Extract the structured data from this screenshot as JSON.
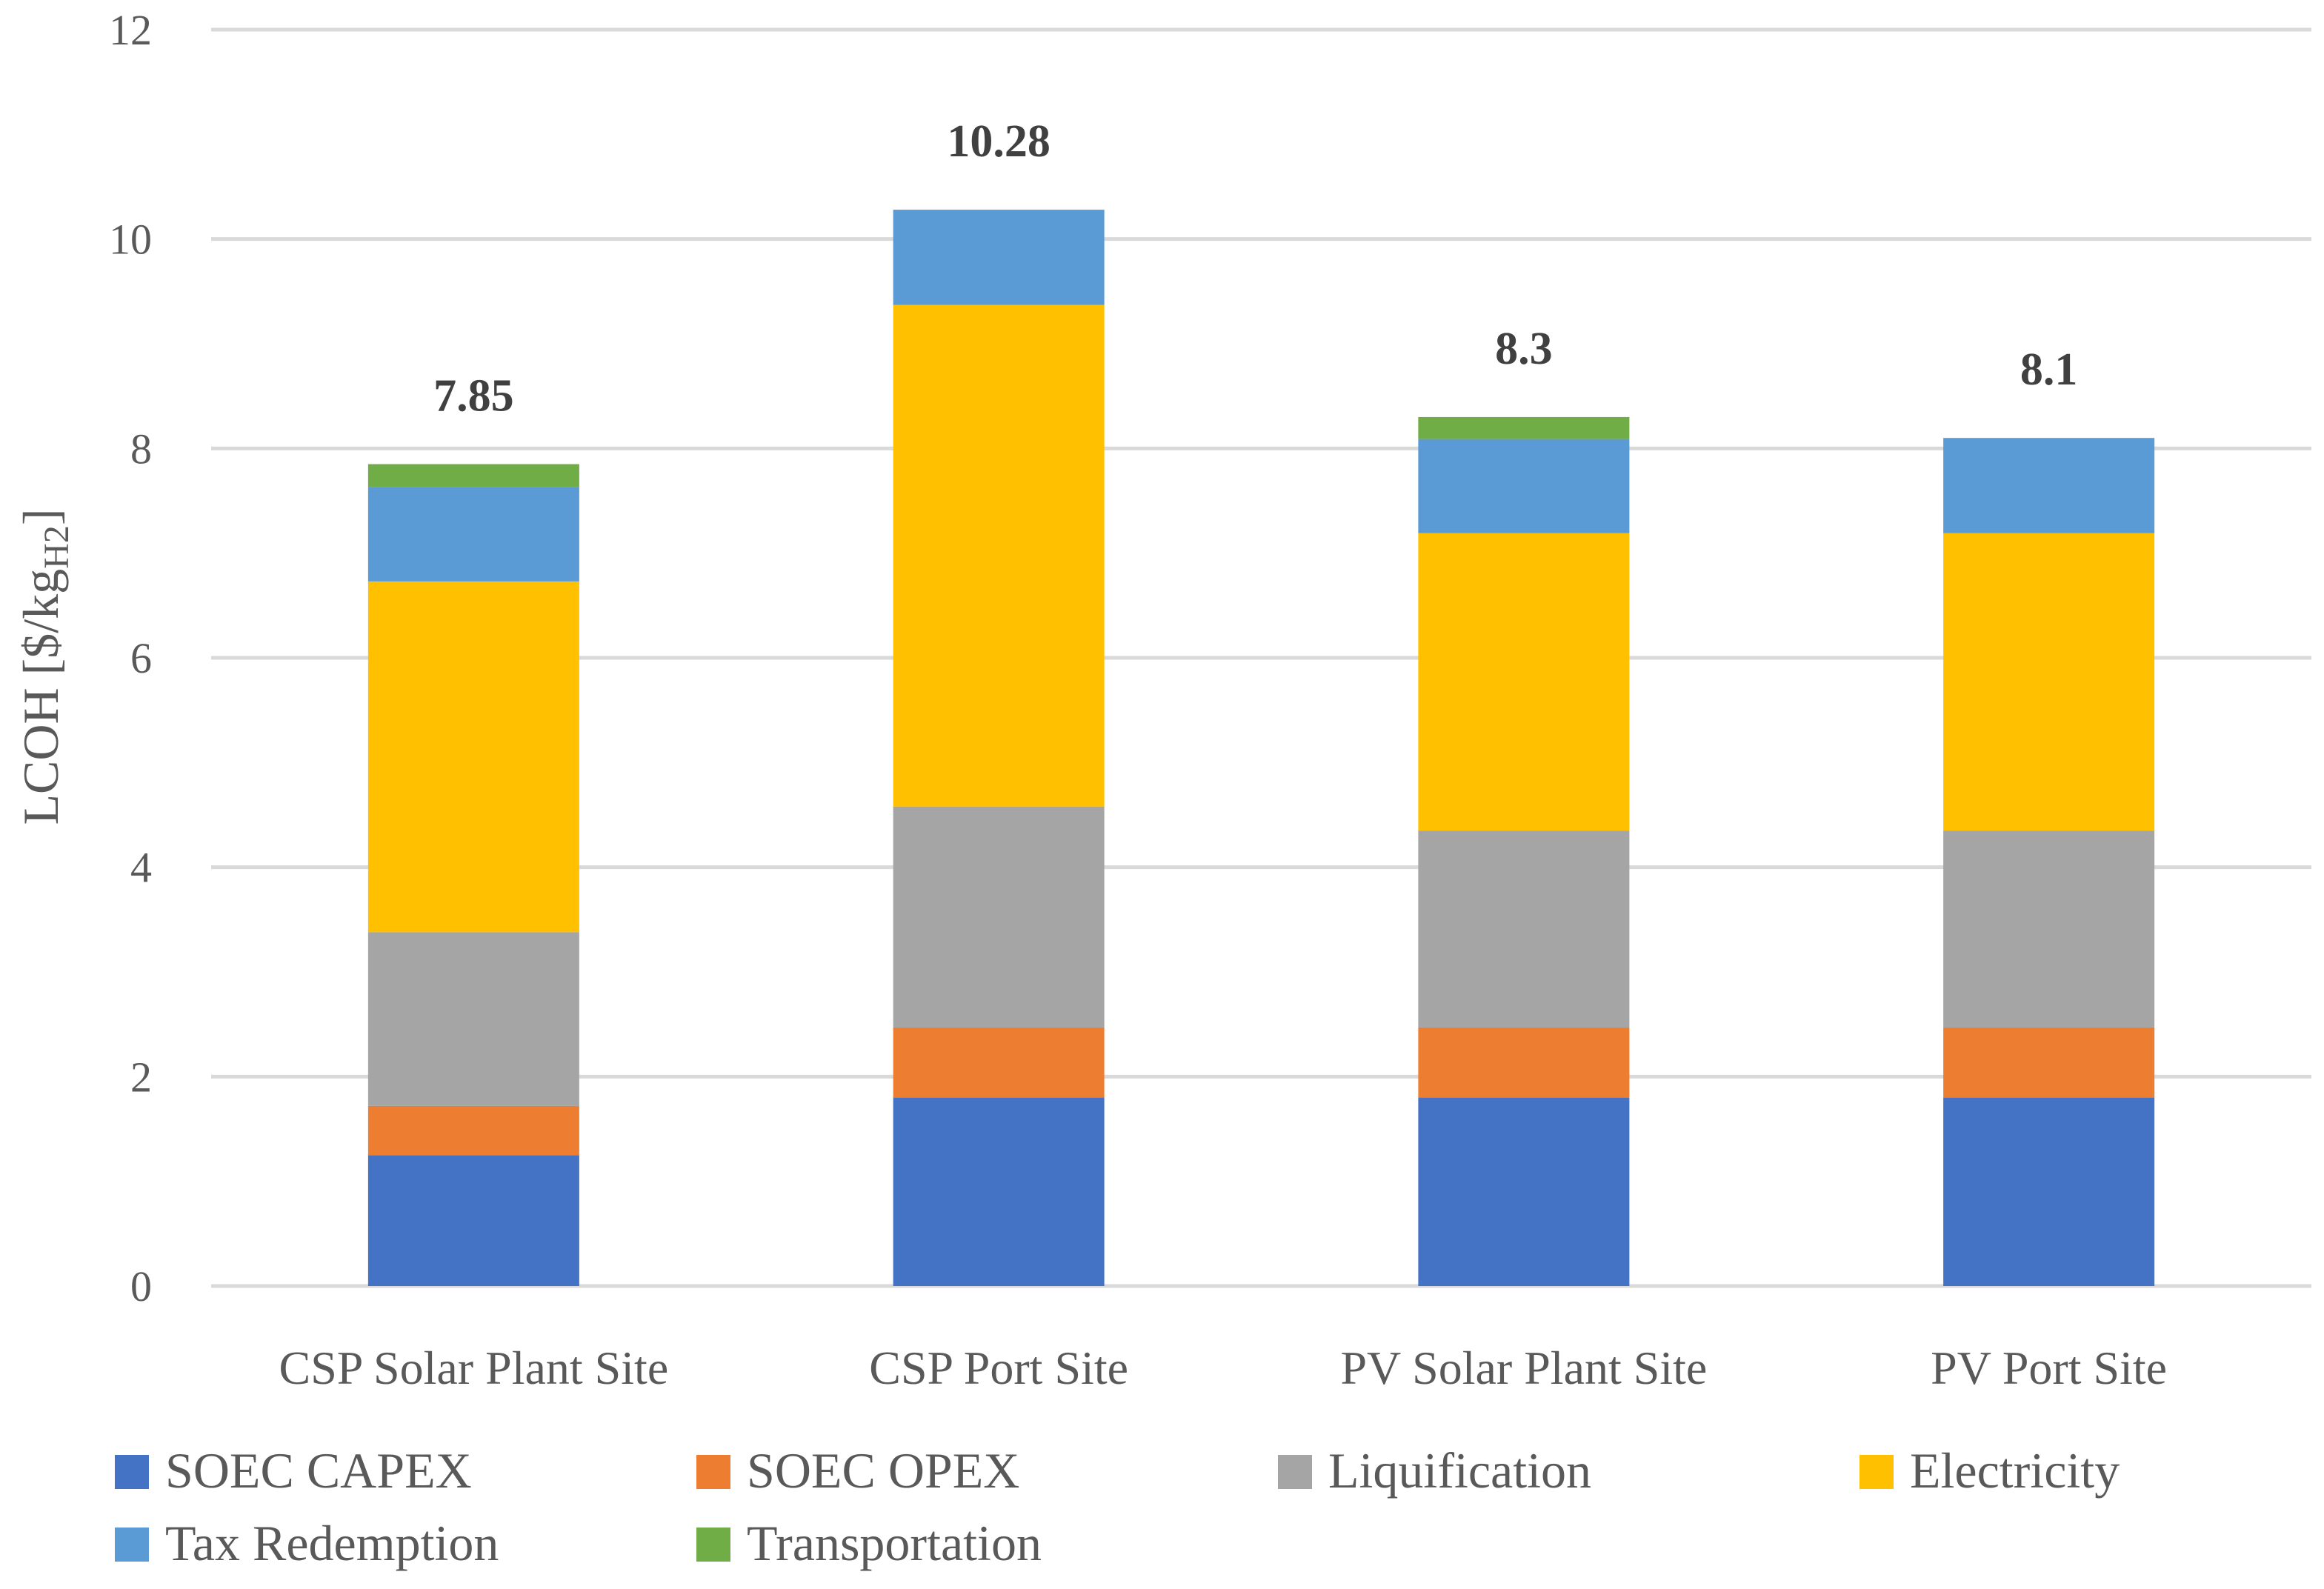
{
  "chart_data": {
    "type": "bar",
    "stacked": true,
    "title": "",
    "ylabel": "LCOH [$/kg",
    "ylabel_subscript": "H2",
    "ylabel_suffix": "]",
    "xlabel": "",
    "ylim": [
      0,
      12
    ],
    "yticks": [
      0,
      2,
      4,
      6,
      8,
      10,
      12
    ],
    "grid": true,
    "legend_position": "bottom",
    "categories": [
      "CSP Solar Plant Site",
      "CSP Port Site",
      "PV Solar Plant Site",
      "PV Port Site"
    ],
    "totals": [
      "7.85",
      "10.28",
      "8.3",
      "8.1"
    ],
    "series": [
      {
        "name": "SOEC CAPEX",
        "color": "#4472C4",
        "values": [
          1.25,
          1.8,
          1.8,
          1.8
        ]
      },
      {
        "name": "SOEC OPEX",
        "color": "#ED7D31",
        "values": [
          0.47,
          0.67,
          0.67,
          0.67
        ]
      },
      {
        "name": "Liquification",
        "color": "#A5A5A5",
        "values": [
          1.66,
          2.11,
          1.88,
          1.88
        ]
      },
      {
        "name": "Electricity",
        "color": "#FFC000",
        "values": [
          3.35,
          4.79,
          2.84,
          2.84
        ]
      },
      {
        "name": "Tax Redemption",
        "color": "#5B9BD5",
        "values": [
          0.9,
          0.91,
          0.9,
          0.91
        ]
      },
      {
        "name": "Transportation",
        "color": "#70AD47",
        "values": [
          0.22,
          0,
          0.21,
          0
        ]
      }
    ]
  }
}
